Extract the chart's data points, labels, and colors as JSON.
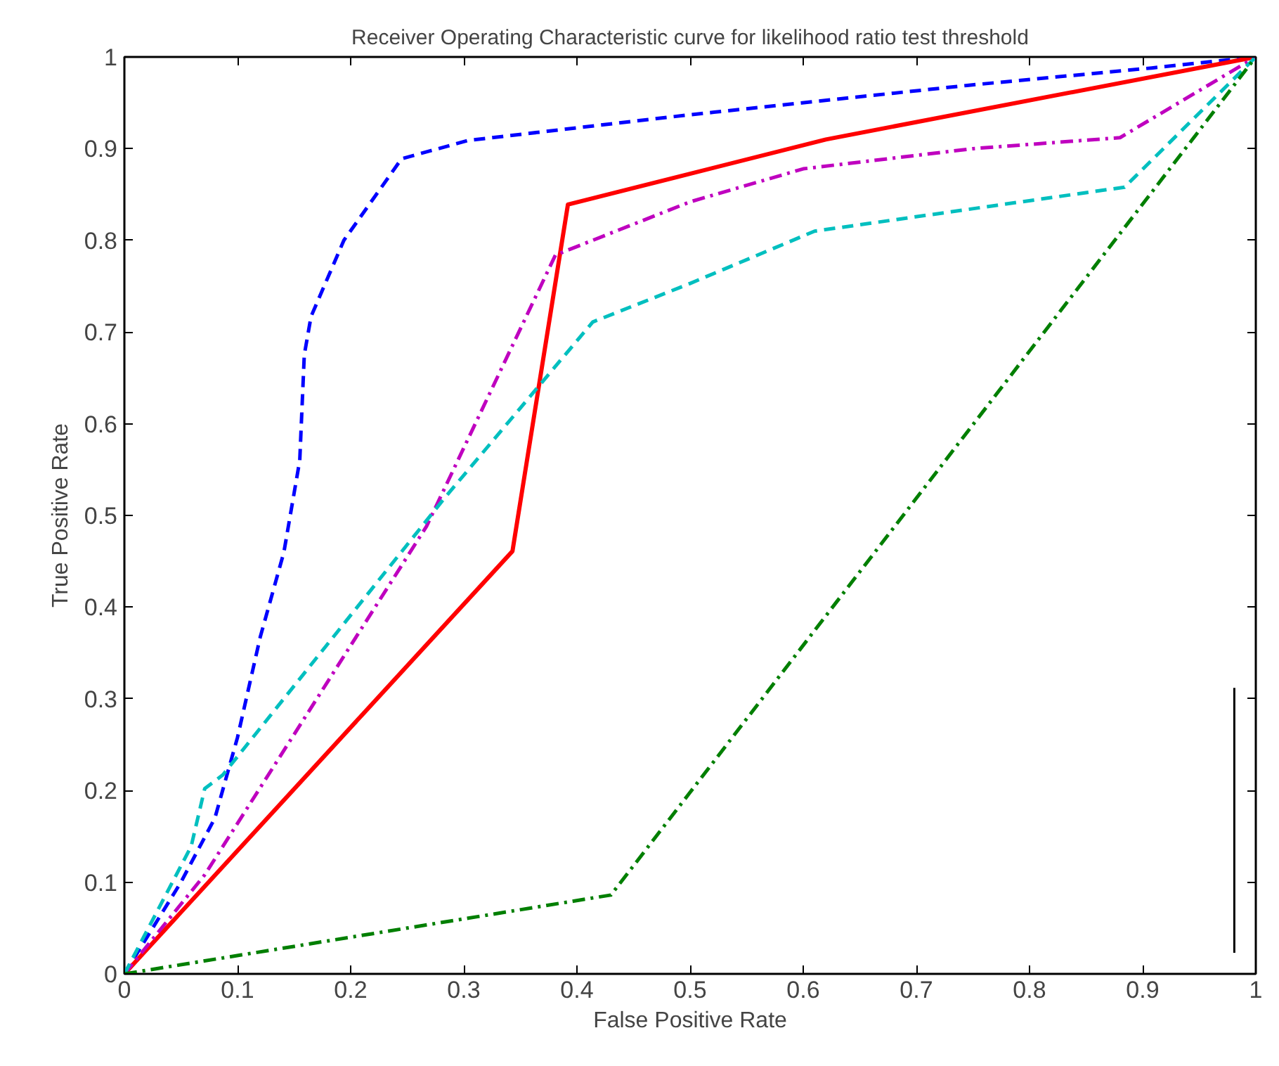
{
  "chart_data": {
    "type": "line",
    "title": "Receiver Operating Characteristic curve for likelihood ratio test threshold",
    "xlabel": "False Positive Rate",
    "ylabel": "True Positive Rate",
    "xlim": [
      0,
      1
    ],
    "ylim": [
      0,
      1
    ],
    "xticks": [
      0,
      0.1,
      0.2,
      0.3,
      0.4,
      0.5,
      0.6,
      0.7,
      0.8,
      0.9,
      1
    ],
    "yticks": [
      0,
      0.1,
      0.2,
      0.3,
      0.4,
      0.5,
      0.6,
      0.7,
      0.8,
      0.9,
      1
    ],
    "grid": false,
    "series": [
      {
        "color": "#0000ff",
        "line_style": "dashed",
        "x": [
          0,
          0.05,
          0.08,
          0.1,
          0.12,
          0.141,
          0.155,
          0.159,
          0.165,
          0.194,
          0.245,
          0.304,
          0.5,
          0.745,
          0.908,
          1
        ],
        "values": [
          0,
          0.1,
          0.17,
          0.258,
          0.367,
          0.46,
          0.56,
          0.675,
          0.717,
          0.8,
          0.889,
          0.909,
          0.937,
          0.969,
          0.988,
          1
        ]
      },
      {
        "color": "#ff0000",
        "line_style": "solid",
        "x": [
          0,
          0.343,
          0.392,
          0.62,
          1
        ],
        "values": [
          0,
          0.461,
          0.839,
          0.91,
          1
        ]
      },
      {
        "color": "#bf00bf",
        "line_style": "dashdot",
        "x": [
          0,
          0.071,
          0.267,
          0.381,
          0.5,
          0.6,
          0.75,
          0.88,
          1
        ],
        "values": [
          0,
          0.108,
          0.488,
          0.784,
          0.842,
          0.878,
          0.9,
          0.912,
          1
        ]
      },
      {
        "color": "#00bfbf",
        "line_style": "dashed",
        "x": [
          0,
          0.059,
          0.071,
          0.087,
          0.283,
          0.414,
          0.5,
          0.61,
          0.884,
          1
        ],
        "values": [
          0,
          0.139,
          0.202,
          0.217,
          0.519,
          0.711,
          0.753,
          0.81,
          0.858,
          1
        ]
      },
      {
        "color": "#007f00",
        "line_style": "dashdot",
        "x": [
          0,
          0.43,
          0.5,
          1
        ],
        "values": [
          0,
          0.086,
          0.198,
          1
        ]
      },
      {
        "color": "#000000",
        "line_style": "solid",
        "x": [
          0.981,
          0.981
        ],
        "values": [
          0.023,
          0.312
        ]
      }
    ]
  }
}
